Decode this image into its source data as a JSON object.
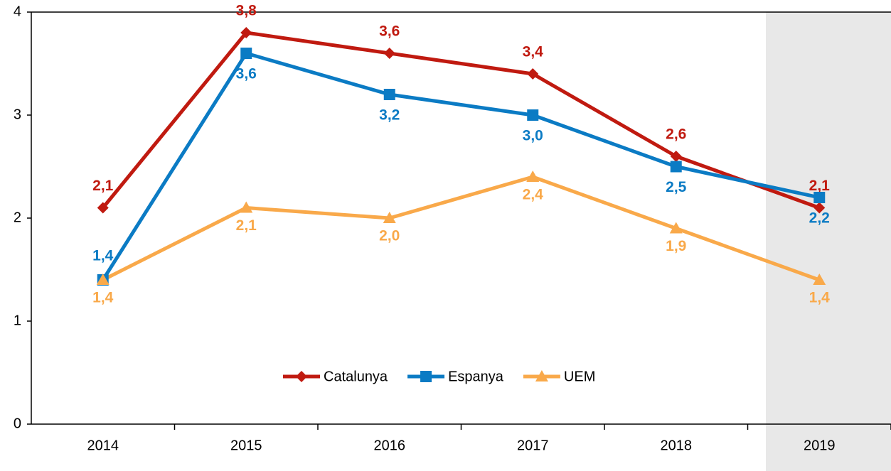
{
  "chart_data": {
    "type": "line",
    "categories": [
      "2014",
      "2015",
      "2016",
      "2017",
      "2018",
      "2019"
    ],
    "series": [
      {
        "name": "Catalunya",
        "color": "#c01a10",
        "marker": "diamond",
        "values": [
          2.1,
          3.8,
          3.6,
          3.4,
          2.6,
          2.1
        ],
        "value_labels": [
          "2,1",
          "3,8",
          "3,6",
          "3,4",
          "2,6",
          "2,1"
        ]
      },
      {
        "name": "Espanya",
        "color": "#0b7bc4",
        "marker": "square",
        "values": [
          1.4,
          3.6,
          3.2,
          3.0,
          2.5,
          2.2
        ],
        "value_labels": [
          "1,4",
          "3,6",
          "3,2",
          "3,0",
          "2,5",
          "2,2"
        ]
      },
      {
        "name": "UEM",
        "color": "#f9a94a",
        "marker": "triangle",
        "values": [
          1.4,
          2.1,
          2.0,
          2.4,
          1.9,
          1.4
        ],
        "value_labels": [
          "1,4",
          "2,1",
          "2,0",
          "2,4",
          "1,9",
          "1,4"
        ]
      }
    ],
    "ylim": [
      0,
      4
    ],
    "yticks": [
      0,
      1,
      2,
      3,
      4
    ],
    "grid": false,
    "legend": "bottom"
  }
}
